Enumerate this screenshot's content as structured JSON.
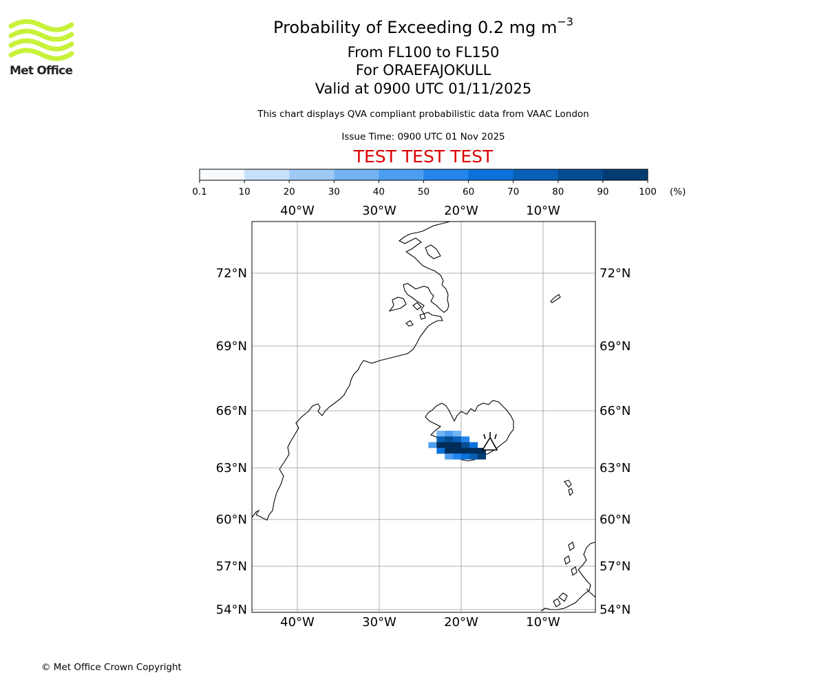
{
  "logo": {
    "text": "Met Office",
    "color": "#c8f23a"
  },
  "header": {
    "title_prefix": "Probability of Exceeding 0.2 mg m",
    "title_exponent": "−3",
    "level": "From FL100 to FL150",
    "volcano": "For ORAEFAJOKULL",
    "valid": "Valid at 0900 UTC 01/11/2025",
    "description": "This chart displays QVA compliant probabilistic data from VAAC London",
    "issue_time": "Issue Time: 0900 UTC 01 Nov 2025",
    "test_banner": "TEST TEST TEST",
    "test_color": "#dd0000"
  },
  "colorbar": {
    "ticks": [
      "0.1",
      "10",
      "20",
      "30",
      "40",
      "50",
      "60",
      "70",
      "80",
      "90",
      "100"
    ],
    "unit": "(%)",
    "colors": [
      "#f7fbff",
      "#c8e1f8",
      "#9fcaf5",
      "#74b3f2",
      "#4c9ef0",
      "#2486eb",
      "#0a72d9",
      "#075fb6",
      "#054c93",
      "#033c73",
      "#012d5a"
    ]
  },
  "map": {
    "lon_labels": [
      "40°W",
      "30°W",
      "20°W",
      "10°W"
    ],
    "lat_labels": [
      "72°N",
      "69°N",
      "66°N",
      "63°N",
      "60°N",
      "57°N",
      "54°N"
    ],
    "grid_color": "#b0b0b0",
    "plume": [
      {
        "lon": -22.5,
        "lat": 64.8,
        "p": 20
      },
      {
        "lon": -21.5,
        "lat": 64.8,
        "p": 30
      },
      {
        "lon": -20.5,
        "lat": 64.8,
        "p": 20
      },
      {
        "lon": -22.5,
        "lat": 64.5,
        "p": 60
      },
      {
        "lon": -21.5,
        "lat": 64.5,
        "p": 70
      },
      {
        "lon": -20.5,
        "lat": 64.5,
        "p": 60
      },
      {
        "lon": -19.5,
        "lat": 64.5,
        "p": 40
      },
      {
        "lon": -23.5,
        "lat": 64.2,
        "p": 30
      },
      {
        "lon": -22.5,
        "lat": 64.2,
        "p": 90
      },
      {
        "lon": -21.5,
        "lat": 64.2,
        "p": 90
      },
      {
        "lon": -20.5,
        "lat": 64.2,
        "p": 90
      },
      {
        "lon": -19.5,
        "lat": 64.2,
        "p": 70
      },
      {
        "lon": -18.5,
        "lat": 64.2,
        "p": 50
      },
      {
        "lon": -22.5,
        "lat": 63.9,
        "p": 50
      },
      {
        "lon": -21.5,
        "lat": 63.9,
        "p": 90
      },
      {
        "lon": -20.5,
        "lat": 63.9,
        "p": 90
      },
      {
        "lon": -19.5,
        "lat": 63.9,
        "p": 90
      },
      {
        "lon": -18.5,
        "lat": 63.9,
        "p": 100
      },
      {
        "lon": -17.5,
        "lat": 63.9,
        "p": 100
      },
      {
        "lon": -21.5,
        "lat": 63.6,
        "p": 30
      },
      {
        "lon": -20.5,
        "lat": 63.6,
        "p": 40
      },
      {
        "lon": -19.5,
        "lat": 63.6,
        "p": 50
      },
      {
        "lon": -18.5,
        "lat": 63.6,
        "p": 60
      },
      {
        "lon": -17.5,
        "lat": 63.6,
        "p": 80
      }
    ]
  },
  "footer": {
    "copyright": "© Met Office Crown Copyright"
  }
}
